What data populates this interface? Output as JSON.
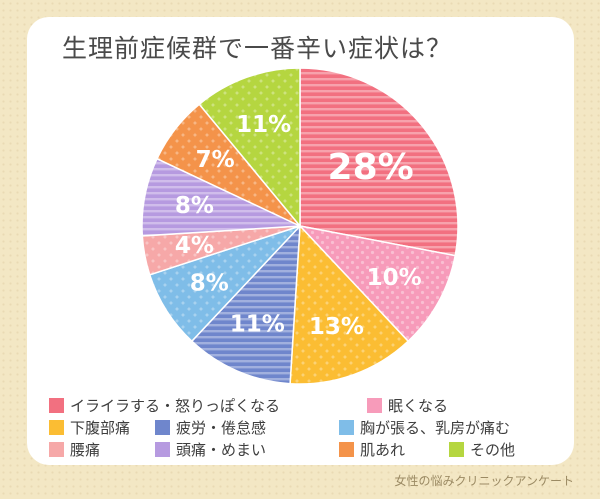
{
  "title": "生理前症候群で一番辛い症状は？",
  "credit": "女性の悩みクリニックアンケート",
  "chart_data": {
    "type": "pie",
    "title": "生理前症候群で一番辛い症状は？",
    "categories": [
      "イライラする・怒りっぽくなる",
      "眠くなる",
      "下腹部痛",
      "疲労・倦怠感",
      "胸が張る、乳房が痛む",
      "腰痛",
      "頭痛・めまい",
      "肌あれ",
      "その他"
    ],
    "values": [
      28,
      10,
      13,
      11,
      8,
      4,
      8,
      7,
      11
    ],
    "data_labels": [
      "28%",
      "10%",
      "13%",
      "11%",
      "8%",
      "4%",
      "8%",
      "7%",
      "11%"
    ],
    "colors": [
      "#f27080",
      "#f79bba",
      "#fbbd33",
      "#6f86cc",
      "#7fbde8",
      "#f6a8a8",
      "#b69ae0",
      "#f4934a",
      "#b5d640"
    ],
    "patterns": [
      "stripes",
      "dots",
      "stars",
      "stripes",
      "stars",
      "stars",
      "stripes",
      "stars",
      "stars"
    ],
    "legend_position": "bottom"
  }
}
